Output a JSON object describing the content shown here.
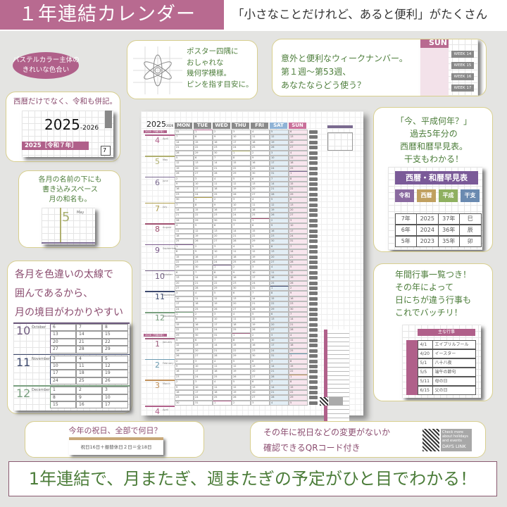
{
  "header": {
    "title": "１年連結カレンダー",
    "subtitle": "「小さなことだけれど、あると便利」がたくさん"
  },
  "pill": {
    "line1": "パステルカラー主体の",
    "line2": "きれいな色合い"
  },
  "flower_note": {
    "lines": [
      "ポスター四隅に",
      "おしゃれな",
      "幾何学模様。",
      "ピンを指す目安に。"
    ]
  },
  "week_note": {
    "lines": [
      "意外と便利なウィークナンバー。",
      "第１週〜第53週、",
      "あなたならどう使う？"
    ],
    "sun_label": "SUN",
    "weeks": [
      "WEEK 14",
      "WEEK 15",
      "WEEK 16",
      "WEEK 17"
    ]
  },
  "year_note": {
    "text": "西暦だけでなく、令和も併記。",
    "year_big": "2025",
    "year_small": "-2026",
    "reiwa": "2025［令和７年］",
    "day": "7"
  },
  "month_note": {
    "lines": [
      "各月の名前の下にも",
      "書き込みスペース",
      "月の和名も。"
    ],
    "month_num": "5",
    "month_en": "May"
  },
  "border_note": {
    "lines": [
      "各月を色違いの太線で",
      "囲んであるから、",
      "月の境目がわかりやすい"
    ],
    "months": [
      {
        "num": "10",
        "en": "October",
        "color": "#6e5a7e",
        "rows": [
          [
            "6",
            "7",
            "8"
          ],
          [
            "13",
            "14",
            "15"
          ],
          [
            "20",
            "21",
            "22"
          ],
          [
            "27",
            "28",
            "29"
          ]
        ]
      },
      {
        "num": "11",
        "en": "November",
        "color": "#3e4a6e",
        "rows": [
          [
            "3",
            "4",
            "5"
          ],
          [
            "10",
            "11",
            "12"
          ],
          [
            "17",
            "18",
            "19"
          ],
          [
            "24",
            "25",
            "26"
          ]
        ]
      },
      {
        "num": "12",
        "en": "December",
        "color": "#7aa080",
        "rows": [
          [
            "1",
            "2",
            "3"
          ],
          [
            "8",
            "9",
            "10"
          ],
          [
            "15",
            "16",
            "17"
          ]
        ]
      }
    ]
  },
  "era_note": {
    "lines": [
      "「今、平成何年？」",
      "過去5年分の",
      "西暦和暦早見表。",
      "干支もわかる！"
    ],
    "table_title": "西暦・和暦早見表",
    "headers": [
      {
        "label": "令和",
        "color": "#8a6aa0"
      },
      {
        "label": "西暦",
        "color": "#c0a060"
      },
      {
        "label": "平成",
        "color": "#8fb060"
      },
      {
        "label": "干支",
        "color": "#6a8ab0"
      }
    ],
    "rows": [
      [
        "7年",
        "2025",
        "37年",
        "巳"
      ],
      [
        "6年",
        "2024",
        "36年",
        "辰"
      ],
      [
        "5年",
        "2023",
        "35年",
        "卯"
      ]
    ]
  },
  "event_note": {
    "lines": [
      "年間行事一覧つき！",
      "その年によって",
      "日にちが違う行事も",
      "これでバッチリ！"
    ],
    "table_title": "主な行事",
    "rows": [
      [
        "4/1",
        "エイプリルフール"
      ],
      [
        "4/20",
        "イースター"
      ],
      [
        "5/1",
        "八十八夜"
      ],
      [
        "5/5",
        "端午の節句"
      ],
      [
        "5/11",
        "母の日"
      ],
      [
        "6/15",
        "父の日"
      ]
    ]
  },
  "holiday_note": {
    "question": "今年の祝日、全部で何日？",
    "answer": "祝日16日＋振替休日２日＝全18日"
  },
  "qr_note": {
    "line1": "その年に祝日などの変更がないか",
    "line2": "確認できるQRコード付き",
    "qr_text": "Check more about holidays and events",
    "brand": "DAYS LINK"
  },
  "banner": "1年連結で、月またぎ、週またぎの予定がひと目でわかる！",
  "calendar": {
    "year": "2025",
    "year_suffix": "2026",
    "reiwa_2025": "2025［令和7年］",
    "reiwa_2026": "2026［令和8年］",
    "days": [
      {
        "label": "MON",
        "color": "#8a8a8a"
      },
      {
        "label": "TUE",
        "color": "#8a8a8a"
      },
      {
        "label": "WED",
        "color": "#8a8a8a"
      },
      {
        "label": "THU",
        "color": "#8a8a8a"
      },
      {
        "label": "FRI",
        "color": "#8a8a8a"
      },
      {
        "label": "SAT",
        "color": "#8fb3d6"
      },
      {
        "label": "SUN",
        "color": "#c9709a"
      }
    ],
    "sat_fill": "#e3eef5",
    "sun_fill": "#f8e6ee",
    "months": [
      {
        "num": "4",
        "en": "April",
        "color": "#b0608a"
      },
      {
        "num": "5",
        "en": "May",
        "color": "#b0b070"
      },
      {
        "num": "6",
        "en": "June",
        "color": "#7a6a90"
      },
      {
        "num": "7",
        "en": "July",
        "color": "#b0a050"
      },
      {
        "num": "8",
        "en": "August",
        "color": "#a05070"
      },
      {
        "num": "9",
        "en": "September",
        "color": "#7a5a8a"
      },
      {
        "num": "10",
        "en": "October",
        "color": "#6e5a7e"
      },
      {
        "num": "11",
        "en": "November",
        "color": "#3e4a6e"
      },
      {
        "num": "12",
        "en": "December",
        "color": "#7aa080"
      },
      {
        "num": "1",
        "en": "January",
        "color": "#a06080"
      },
      {
        "num": "2",
        "en": "February",
        "color": "#6a9ab0"
      },
      {
        "num": "3",
        "en": "March",
        "color": "#c0905a"
      }
    ]
  }
}
